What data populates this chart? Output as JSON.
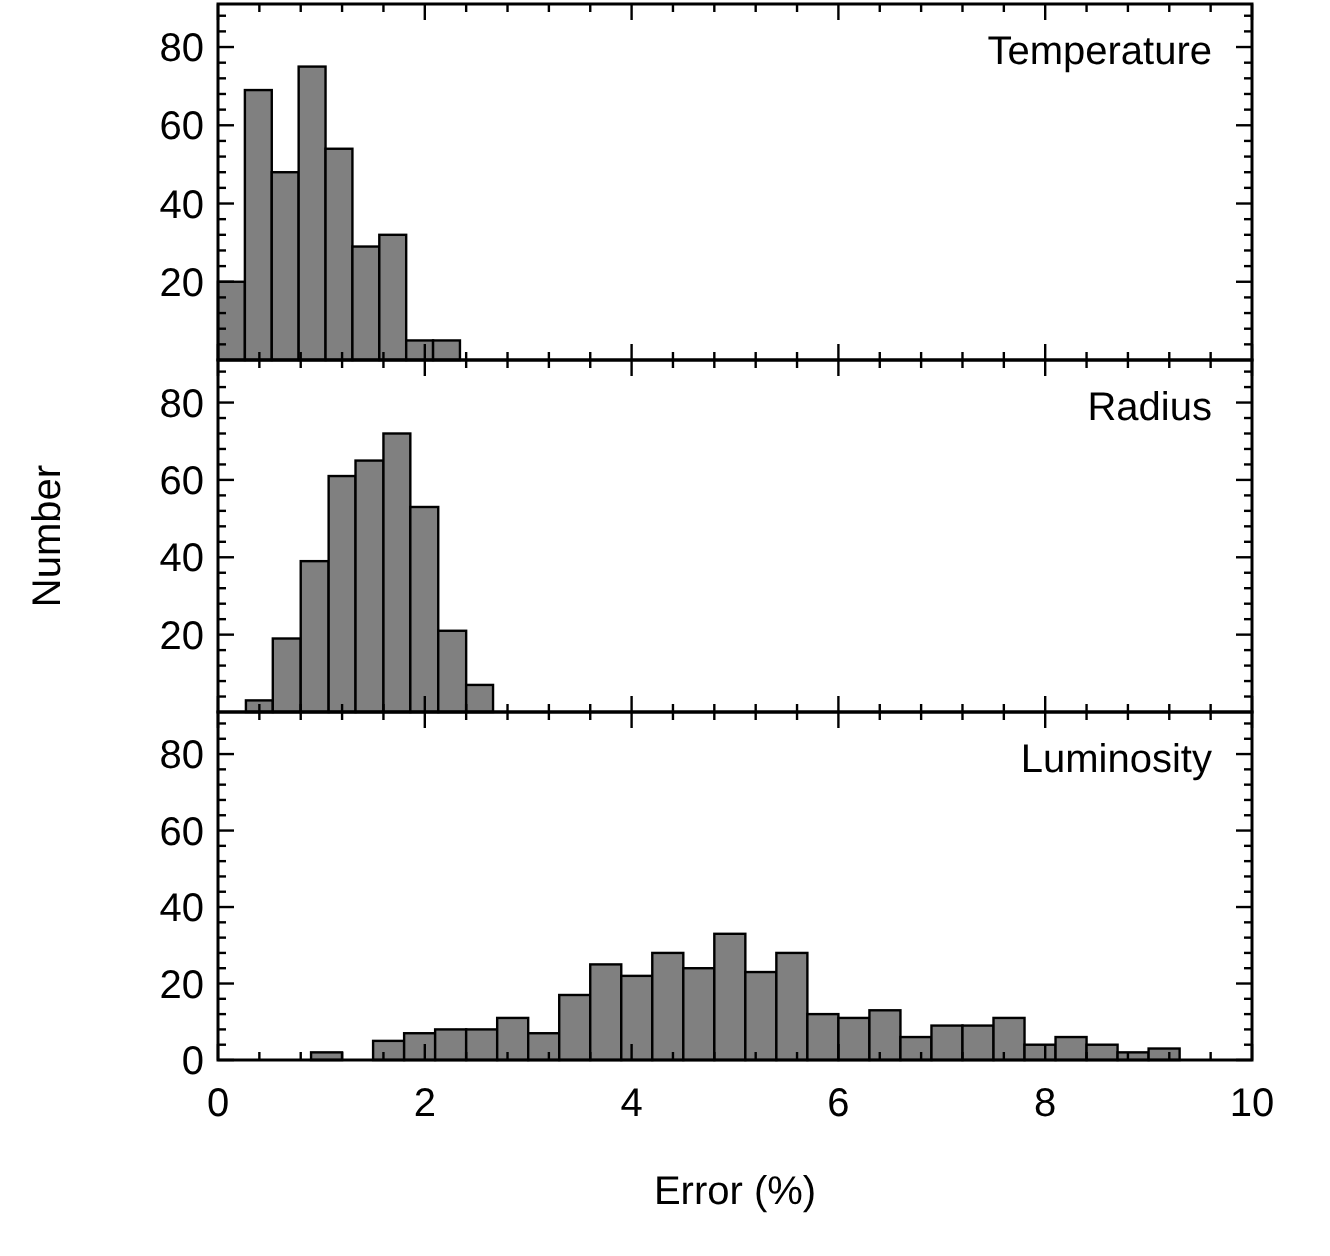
{
  "chart_data": [
    {
      "type": "histogram",
      "bins": [
        0,
        0.26,
        0.52,
        0.78,
        1.04,
        1.3,
        1.56,
        1.82,
        2.08,
        2.34
      ],
      "values": [
        20,
        69,
        48,
        75,
        54,
        29,
        32,
        5,
        5
      ],
      "color": "#808080",
      "xlim": [
        0,
        10
      ],
      "ylim": [
        0,
        91
      ],
      "xticks": [
        0,
        {
          "value": 0.4,
          "label": null
        },
        {
          "value": 0.8,
          "label": null
        },
        {
          "value": 1.2,
          "label": null
        },
        {
          "value": 1.6,
          "label": null
        },
        2,
        {
          "value": 2.4,
          "label": null
        },
        {
          "value": 2.8,
          "label": null
        },
        {
          "value": 3.2,
          "label": null
        },
        {
          "value": 3.6,
          "label": null
        },
        4,
        {
          "value": 4.4,
          "label": null
        },
        {
          "value": 4.8,
          "label": null
        },
        {
          "value": 5.2,
          "label": null
        },
        {
          "value": 5.6,
          "label": null
        },
        6,
        {
          "value": 6.4,
          "label": null
        },
        {
          "value": 6.8,
          "label": null
        },
        {
          "value": 7.2,
          "label": null
        },
        {
          "value": 7.6,
          "label": null
        },
        8,
        {
          "value": 8.4,
          "label": null
        },
        {
          "value": 8.8,
          "label": null
        },
        {
          "value": 9.2,
          "label": null
        },
        {
          "value": 9.6,
          "label": null
        },
        10
      ],
      "yticks": [
        {
          "value": 4,
          "label": null
        },
        {
          "value": 8,
          "label": null
        },
        {
          "value": 12,
          "label": null
        },
        {
          "value": 16,
          "label": null
        },
        20,
        {
          "value": 24,
          "label": null
        },
        {
          "value": 28,
          "label": null
        },
        {
          "value": 32,
          "label": null
        },
        {
          "value": 36,
          "label": null
        },
        40,
        {
          "value": 44,
          "label": null
        },
        {
          "value": 48,
          "label": null
        },
        {
          "value": 52,
          "label": null
        },
        {
          "value": 56,
          "label": null
        },
        60,
        {
          "value": 64,
          "label": null
        },
        {
          "value": 68,
          "label": null
        },
        {
          "value": 72,
          "label": null
        },
        {
          "value": 76,
          "label": null
        },
        80,
        {
          "value": 84,
          "label": null
        },
        {
          "value": 88,
          "label": null
        }
      ],
      "tick_labels": "y",
      "annotations": [
        "Temperature"
      ]
    },
    {
      "type": "histogram",
      "bins": [
        0.27,
        0.53,
        0.8,
        1.07,
        1.33,
        1.6,
        1.86,
        2.13,
        2.4,
        2.66
      ],
      "values": [
        3,
        19,
        39,
        61,
        65,
        72,
        53,
        21,
        7
      ],
      "color": "#808080",
      "xlim": [
        0,
        10
      ],
      "ylim": [
        0,
        91
      ],
      "ylabel": "Number",
      "xticks": [
        0,
        {
          "value": 0.4,
          "label": null
        },
        {
          "value": 0.8,
          "label": null
        },
        {
          "value": 1.2,
          "label": null
        },
        {
          "value": 1.6,
          "label": null
        },
        2,
        {
          "value": 2.4,
          "label": null
        },
        {
          "value": 2.8,
          "label": null
        },
        {
          "value": 3.2,
          "label": null
        },
        {
          "value": 3.6,
          "label": null
        },
        4,
        {
          "value": 4.4,
          "label": null
        },
        {
          "value": 4.8,
          "label": null
        },
        {
          "value": 5.2,
          "label": null
        },
        {
          "value": 5.6,
          "label": null
        },
        6,
        {
          "value": 6.4,
          "label": null
        },
        {
          "value": 6.8,
          "label": null
        },
        {
          "value": 7.2,
          "label": null
        },
        {
          "value": 7.6,
          "label": null
        },
        8,
        {
          "value": 8.4,
          "label": null
        },
        {
          "value": 8.8,
          "label": null
        },
        {
          "value": 9.2,
          "label": null
        },
        {
          "value": 9.6,
          "label": null
        },
        10
      ],
      "yticks": [
        {
          "value": 4,
          "label": null
        },
        {
          "value": 8,
          "label": null
        },
        {
          "value": 12,
          "label": null
        },
        {
          "value": 16,
          "label": null
        },
        20,
        {
          "value": 24,
          "label": null
        },
        {
          "value": 28,
          "label": null
        },
        {
          "value": 32,
          "label": null
        },
        {
          "value": 36,
          "label": null
        },
        40,
        {
          "value": 44,
          "label": null
        },
        {
          "value": 48,
          "label": null
        },
        {
          "value": 52,
          "label": null
        },
        {
          "value": 56,
          "label": null
        },
        60,
        {
          "value": 64,
          "label": null
        },
        {
          "value": 68,
          "label": null
        },
        {
          "value": 72,
          "label": null
        },
        {
          "value": 76,
          "label": null
        },
        80,
        {
          "value": 84,
          "label": null
        },
        {
          "value": 88,
          "label": null
        }
      ],
      "tick_labels": "y",
      "annotations": [
        "Radius"
      ]
    },
    {
      "type": "histogram",
      "bins": [
        0.9,
        1.2,
        1.5,
        1.8,
        2.1,
        2.4,
        2.7,
        3.0,
        3.3,
        3.6,
        3.9,
        4.2,
        4.5,
        4.8,
        5.1,
        5.4,
        5.7,
        6.0,
        6.3,
        6.6,
        6.9,
        7.2,
        7.5,
        7.8,
        8.1,
        8.4,
        8.7,
        9.0,
        9.3
      ],
      "values": [
        2,
        0,
        5,
        7,
        8,
        8,
        11,
        7,
        17,
        25,
        22,
        28,
        24,
        33,
        23,
        28,
        12,
        11,
        13,
        6,
        9,
        9,
        11,
        4,
        6,
        4,
        2,
        3
      ],
      "color": "#808080",
      "xlim": [
        0,
        10
      ],
      "ylim": [
        0,
        91
      ],
      "xlabel": "Error (%)",
      "xticks": [
        0,
        {
          "value": 0.4,
          "label": null
        },
        {
          "value": 0.8,
          "label": null
        },
        {
          "value": 1.2,
          "label": null
        },
        {
          "value": 1.6,
          "label": null
        },
        2,
        {
          "value": 2.4,
          "label": null
        },
        {
          "value": 2.8,
          "label": null
        },
        {
          "value": 3.2,
          "label": null
        },
        {
          "value": 3.6,
          "label": null
        },
        4,
        {
          "value": 4.4,
          "label": null
        },
        {
          "value": 4.8,
          "label": null
        },
        {
          "value": 5.2,
          "label": null
        },
        {
          "value": 5.6,
          "label": null
        },
        6,
        {
          "value": 6.4,
          "label": null
        },
        {
          "value": 6.8,
          "label": null
        },
        {
          "value": 7.2,
          "label": null
        },
        {
          "value": 7.6,
          "label": null
        },
        8,
        {
          "value": 8.4,
          "label": null
        },
        {
          "value": 8.8,
          "label": null
        },
        {
          "value": 9.2,
          "label": null
        },
        {
          "value": 9.6,
          "label": null
        },
        10
      ],
      "yticks": [
        0,
        {
          "value": 4,
          "label": null
        },
        {
          "value": 8,
          "label": null
        },
        {
          "value": 12,
          "label": null
        },
        {
          "value": 16,
          "label": null
        },
        20,
        {
          "value": 24,
          "label": null
        },
        {
          "value": 28,
          "label": null
        },
        {
          "value": 32,
          "label": null
        },
        {
          "value": 36,
          "label": null
        },
        40,
        {
          "value": 44,
          "label": null
        },
        {
          "value": 48,
          "label": null
        },
        {
          "value": 52,
          "label": null
        },
        {
          "value": 56,
          "label": null
        },
        60,
        {
          "value": 64,
          "label": null
        },
        {
          "value": 68,
          "label": null
        },
        {
          "value": 72,
          "label": null
        },
        {
          "value": 76,
          "label": null
        },
        80,
        {
          "value": 84,
          "label": null
        },
        {
          "value": 88,
          "label": null
        }
      ],
      "annotations": [
        "Luminosity"
      ]
    }
  ]
}
